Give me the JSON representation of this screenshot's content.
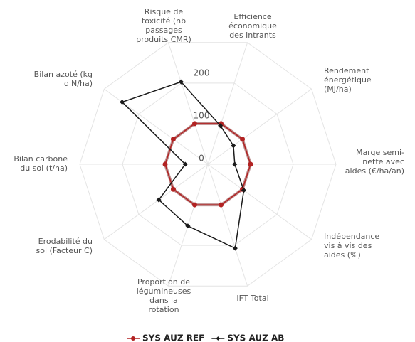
{
  "chart_data": {
    "type": "radar",
    "categories": [
      "Risque de\ntoxicité (nb\npassages\nproduits CMR)",
      "Efficience\néconomique\ndes intrants",
      "Rendement\nénergétique\n(MJ/ha)",
      "Marge semi-\nnette avec\naides (€/ha/an)",
      "Indépendance\nvis à vis des\naides (%)",
      "IFT Total",
      "Proportion de\nlégumineuses\ndans la\nrotation",
      "Erodabilité du\nsol (Facteur C)",
      "Bilan carbone\ndu sol (t/ha)",
      "Bilan azoté (kg\nd'N/ha)"
    ],
    "series": [
      {
        "name": "SYS AUZ REF",
        "color": "#b22222",
        "values": [
          100,
          100,
          100,
          100,
          100,
          100,
          100,
          100,
          100,
          100
        ]
      },
      {
        "name": "SYS AUZ AB",
        "color": "#1a1a1a",
        "values": [
          203,
          95,
          74,
          63,
          104,
          207,
          152,
          142,
          53,
          248
        ]
      }
    ],
    "ylim": [
      0,
      300
    ],
    "yticks": [
      0,
      100,
      200
    ],
    "grid": true,
    "legend": "bottom"
  }
}
